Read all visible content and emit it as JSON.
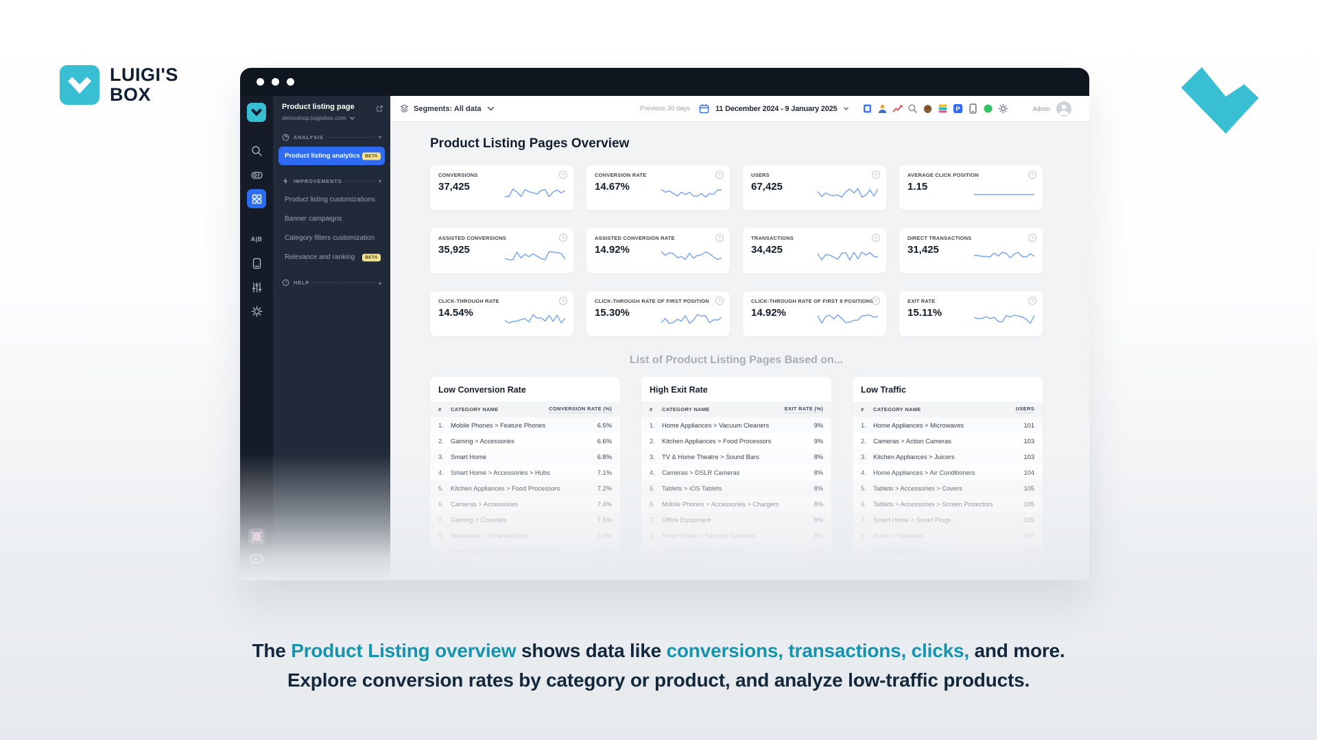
{
  "colors": {
    "teal": "#38bfd3",
    "caption_teal": "#1794ab",
    "accent_blue": "#2e6bf2",
    "sparkline_blue": "#7aa7f0"
  },
  "brand": {
    "line1": "LUIGI'S",
    "line2": "BOX"
  },
  "icons": {
    "collapse_down": "▾",
    "collapse_up": "▴",
    "help_glyph": "?"
  },
  "window": {
    "sidebar": {
      "project_title": "Product listing page",
      "project_domain": "demoshop.luigisbox.com",
      "sections": [
        {
          "label": "ANALYSIS",
          "icon": "pie",
          "collapse": "down",
          "items": [
            {
              "label": "Product listing analytics",
              "badge": "BETA",
              "active": true
            }
          ]
        },
        {
          "label": "IMPROVEMENTS",
          "icon": "bolt",
          "collapse": "down",
          "items": [
            {
              "label": "Product listing customizations"
            },
            {
              "label": "Banner campaigns"
            },
            {
              "label": "Category filters customization"
            },
            {
              "label": "Relevance and ranking",
              "badge": "BETA"
            }
          ]
        },
        {
          "label": "HELP",
          "icon": "help",
          "collapse": "up",
          "items": []
        }
      ],
      "rail_icons": [
        "luigisbox-logo",
        "search",
        "switch",
        "grid",
        "ab-test",
        "catalog",
        "sliders",
        "settings",
        "uk-flag",
        "status-toggle"
      ]
    },
    "topbar": {
      "segments_label": "Segments: All data",
      "range_shortcut": "Previous 30 days",
      "date_range": "11 December 2024 - 9 January 2025",
      "user_label": "Admin",
      "integration_icons": [
        "clipboard-icon",
        "user-icon",
        "chart-up-icon",
        "magnifier-icon",
        "mascot-icon",
        "elastic-icon",
        "p-badge-icon",
        "tablet-icon",
        "green-status-icon",
        "settings-icon"
      ]
    },
    "main": {
      "title": "Product Listing Pages Overview",
      "kpis": [
        {
          "label": "CONVERSIONS",
          "value": "37,425",
          "spark": "wavy"
        },
        {
          "label": "CONVERSION RATE",
          "value": "14.67%",
          "spark": "wavy"
        },
        {
          "label": "USERS",
          "value": "67,425",
          "spark": "wavy"
        },
        {
          "label": "AVERAGE CLICK POSITION",
          "value": "1.15",
          "spark": "flat"
        },
        {
          "label": "ASSISTED CONVERSIONS",
          "value": "35,925",
          "spark": "wavy"
        },
        {
          "label": "ASSISTED CONVERSION RATE",
          "value": "14.92%",
          "spark": "wavy"
        },
        {
          "label": "TRANSACTIONS",
          "value": "34,425",
          "spark": "wavy"
        },
        {
          "label": "DIRECT TRANSACTIONS",
          "value": "31,425",
          "spark": "wavy"
        },
        {
          "label": "CLICK-THROUGH RATE",
          "value": "14.54%",
          "spark": "wavy"
        },
        {
          "label": "CLICK-THROUGH RATE OF FIRST POSITION",
          "value": "15.30%",
          "spark": "wavy"
        },
        {
          "label": "CLICK-THROUGH RATE OF FIRST 8 POSITIONS",
          "value": "14.92%",
          "spark": "wavy"
        },
        {
          "label": "EXIT RATE",
          "value": "15.11%",
          "spark": "wavy"
        }
      ],
      "list_section_title": "List of Product Listing Pages Based on...",
      "table_columns": {
        "index": "#",
        "category": "CATEGORY NAME"
      },
      "tables": [
        {
          "title": "Low Conversion Rate",
          "value_header": "CONVERSION RATE (%)",
          "rows": [
            [
              "1.",
              "Mobile Phones > Feature Phones",
              "6.5%"
            ],
            [
              "2.",
              "Gaming > Accessories",
              "6.6%"
            ],
            [
              "3.",
              "Smart Home",
              "6.8%"
            ],
            [
              "4.",
              "Smart Home > Accessories > Hubs",
              "7.1%"
            ],
            [
              "5.",
              "Kitchen Appliances > Food Processors",
              "7.2%"
            ],
            [
              "6.",
              "Cameras > Accessories",
              "7.4%"
            ],
            [
              "7.",
              "Gaming > Consoles",
              "7.5%"
            ],
            [
              "8.",
              "Wearables > Smartwatches",
              "7.5%"
            ],
            [
              "9.",
              "Home Appliances > Washing Machines",
              "7.6%"
            ],
            [
              "10.",
              "Tablets",
              "7.8%"
            ]
          ]
        },
        {
          "title": "High Exit Rate",
          "value_header": "EXIT RATE (%)",
          "rows": [
            [
              "1.",
              "Home Appliances > Vacuum Cleaners",
              "9%"
            ],
            [
              "2.",
              "Kitchen Appliances > Food Processors",
              "9%"
            ],
            [
              "3.",
              "TV & Home Theatre > Sound Bars",
              "8%"
            ],
            [
              "4.",
              "Cameras > DSLR Cameras",
              "8%"
            ],
            [
              "5.",
              "Tablets > iOS Tablets",
              "8%"
            ],
            [
              "6.",
              "Mobile Phones > Accessories > Chargers",
              "8%"
            ],
            [
              "7.",
              "Office Equipment",
              "8%"
            ],
            [
              "8.",
              "Smart Home > Security Cameras",
              "8%"
            ],
            [
              "9.",
              "Office Equipment > Scanners",
              "8%"
            ],
            [
              "10.",
              "Mobile Phones",
              "8%"
            ]
          ]
        },
        {
          "title": "Low Traffic",
          "value_header": "USERS",
          "rows": [
            [
              "1.",
              "Home Appliances > Microwaves",
              "101"
            ],
            [
              "2.",
              "Cameras > Action Cameras",
              "103"
            ],
            [
              "3.",
              "Kitchen Appliances > Juicers",
              "103"
            ],
            [
              "4.",
              "Home Appliances > Air Conditioners",
              "104"
            ],
            [
              "5.",
              "Tablets > Accessories > Covers",
              "105"
            ],
            [
              "6.",
              "Tablets > Accessories > Screen Protectors",
              "105"
            ],
            [
              "7.",
              "Smart Home > Smart Plugs",
              "105"
            ],
            [
              "8.",
              "Audio > Speakers",
              "107"
            ],
            [
              "9.",
              "Home Appliances",
              "108"
            ],
            [
              "10.",
              "Audio > Home Audio Systems",
              "111"
            ]
          ]
        }
      ]
    }
  },
  "caption": {
    "line1_parts": [
      {
        "text": "The ",
        "accent": false
      },
      {
        "text": "Product Listing overview",
        "accent": true
      },
      {
        "text": " shows data like ",
        "accent": false
      },
      {
        "text": "conversions, transactions, clicks,",
        "accent": true
      },
      {
        "text": " and more.",
        "accent": false
      }
    ],
    "line2": "Explore conversion rates by category or product, and analyze low-traffic products."
  }
}
